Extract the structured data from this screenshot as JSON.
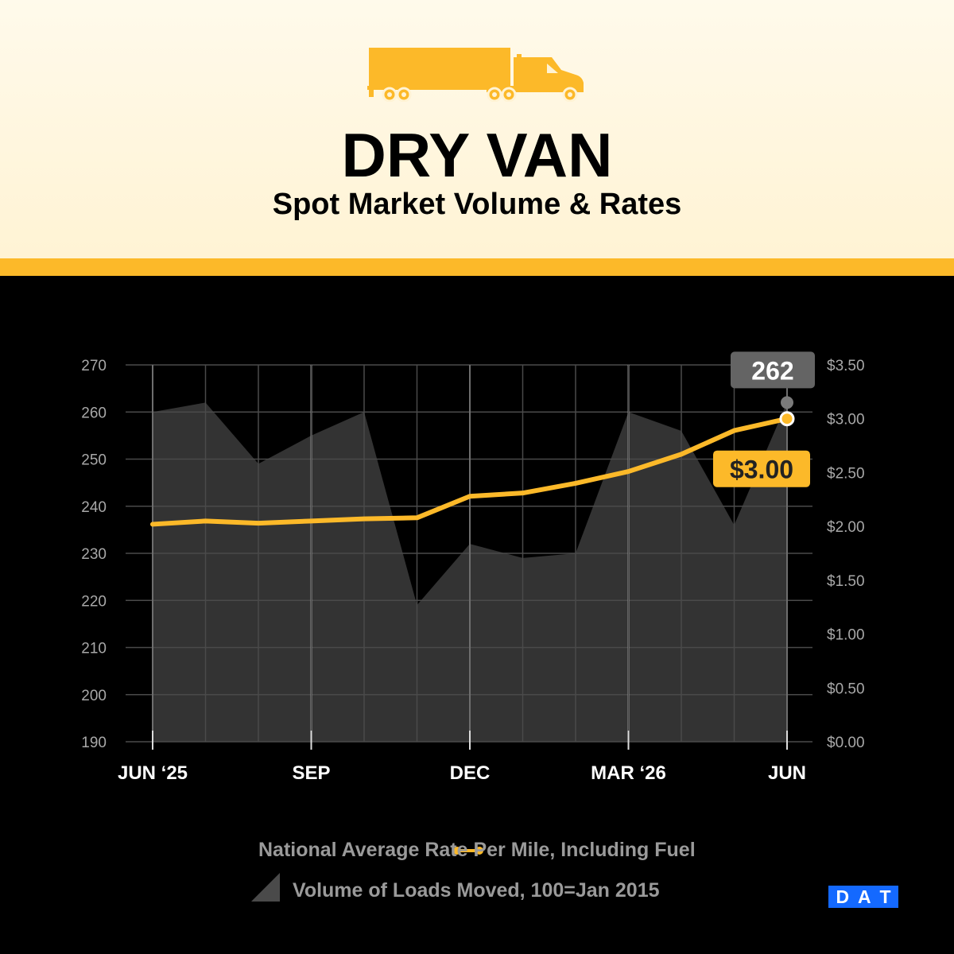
{
  "header": {
    "title": "DRY VAN",
    "subtitle": "Spot Market Volume & Rates",
    "icon": "truck-icon"
  },
  "colors": {
    "accent": "#fcb929",
    "area": "#333333",
    "background": "#000000",
    "callout_gray": "#646464"
  },
  "legend": {
    "line_label": "National Average Rate Per Mile, Including Fuel",
    "area_label": "Volume of Loads Moved, 100=Jan 2015"
  },
  "logo": {
    "letters": [
      "D",
      "A",
      "T"
    ]
  },
  "chart_data": {
    "type": "area",
    "x_tick_labels": [
      "JUN ‘25",
      "SEP",
      "DEC",
      "MAR ‘26",
      "JUN"
    ],
    "x_tick_positions": [
      0,
      3,
      6,
      9,
      12
    ],
    "left_axis": {
      "ylim": [
        190,
        270
      ],
      "ticks": [
        "270",
        "260",
        "250",
        "240",
        "230",
        "220",
        "210",
        "200",
        "190"
      ],
      "tick_values": [
        270,
        260,
        250,
        240,
        230,
        220,
        210,
        200,
        190
      ]
    },
    "right_axis": {
      "ylim": [
        0,
        3.5
      ],
      "ticks": [
        "$3.50",
        "$3.00",
        "$2.50",
        "$2.00",
        "$1.50",
        "$1.00",
        "$0.50",
        "$0.00"
      ],
      "tick_values": [
        3.5,
        3.0,
        2.5,
        2.0,
        1.5,
        1.0,
        0.5,
        0.0
      ]
    },
    "grid": true,
    "series": [
      {
        "name": "Volume of Loads Moved, 100=Jan 2015",
        "kind": "area",
        "axis": "left",
        "values": [
          260,
          262,
          249,
          255,
          260,
          219,
          232,
          229,
          230,
          260,
          256,
          236,
          262
        ]
      },
      {
        "name": "National Average Rate Per Mile, Including Fuel",
        "kind": "line",
        "axis": "right",
        "values": [
          2.02,
          2.05,
          2.03,
          2.05,
          2.07,
          2.08,
          2.28,
          2.31,
          2.4,
          2.51,
          2.67,
          2.89,
          3.0
        ]
      }
    ],
    "callouts": {
      "volume_last": "262",
      "rate_last": "$3.00"
    }
  }
}
